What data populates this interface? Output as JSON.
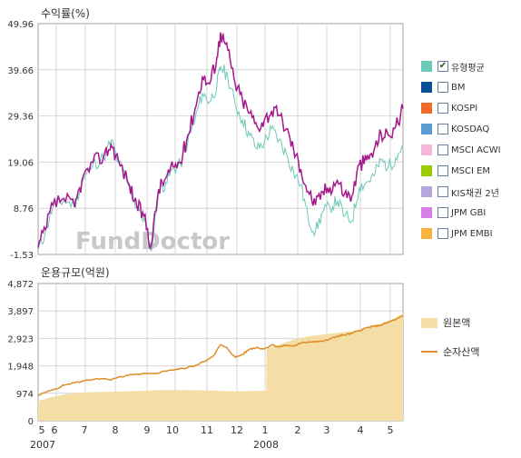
{
  "watermark": "FundDoctor",
  "colors": {
    "fund_line": "#a4188c",
    "bm_line": "#6ccab9",
    "original_fill": "#f5dea6",
    "net_asset_line": "#de8c26",
    "grid": "#d5d5d5",
    "frame": "#a0a0a0"
  },
  "legend_returns": [
    {
      "label": "유형평균",
      "color": "#6ccab9",
      "checked": true
    },
    {
      "label": "BM",
      "color": "#0b4f98",
      "checked": false
    },
    {
      "label": "KOSPI",
      "color": "#f06a2a",
      "checked": false
    },
    {
      "label": "KOSDAQ",
      "color": "#5b9bd5",
      "checked": false
    },
    {
      "label": "MSCI ACWI",
      "color": "#f4b8d9",
      "checked": false
    },
    {
      "label": "MSCI EM",
      "color": "#9acc00",
      "checked": false
    },
    {
      "label": "KIS채권 2년",
      "color": "#b7a7da",
      "checked": false
    },
    {
      "label": "JPM GBI",
      "color": "#d57fe8",
      "checked": false
    },
    {
      "label": "JPM EMBI",
      "color": "#f7b340",
      "checked": false
    }
  ],
  "legend_aum": [
    {
      "label": "원본액",
      "kind": "area",
      "color": "#f5dea6"
    },
    {
      "label": "순자산액",
      "kind": "line",
      "color": "#de8c26"
    }
  ],
  "chart_data": [
    {
      "type": "line",
      "title": "수익률(%)",
      "y_ticks": [
        "49.96",
        "39.66",
        "29.36",
        "19.06",
        "8.76",
        "-1.53"
      ],
      "ylim": [
        -1.53,
        49.96
      ],
      "grid": true,
      "series": [
        {
          "name": "유형평균",
          "x": [
            0,
            0.02,
            0.04,
            0.07,
            0.1,
            0.12,
            0.15,
            0.18,
            0.2,
            0.22,
            0.25,
            0.27,
            0.29,
            0.31,
            0.33,
            0.35,
            0.37,
            0.39,
            0.41,
            0.43,
            0.45,
            0.47,
            0.49,
            0.5,
            0.52,
            0.54,
            0.56,
            0.58,
            0.6,
            0.62,
            0.64,
            0.66,
            0.68,
            0.7,
            0.72,
            0.74,
            0.76,
            0.78,
            0.8,
            0.82,
            0.84,
            0.86,
            0.88,
            0.9,
            0.92,
            0.94,
            0.96,
            0.98,
            1.0
          ],
          "values": [
            -0.5,
            3.5,
            9.0,
            10.5,
            9.5,
            14.5,
            18.5,
            20.0,
            24.0,
            19.0,
            13.5,
            9.0,
            6.5,
            -0.8,
            12.5,
            14.5,
            17.5,
            18.5,
            23.5,
            28.5,
            34.5,
            32.5,
            36.0,
            40.5,
            38.0,
            32.0,
            28.5,
            25.0,
            22.0,
            23.5,
            26.5,
            24.0,
            21.0,
            17.0,
            14.0,
            6.5,
            3.5,
            8.0,
            9.0,
            10.5,
            7.0,
            6.0,
            13.5,
            14.5,
            16.0,
            19.5,
            18.0,
            20.0,
            23.0
          ]
        },
        {
          "name": "",
          "x": [
            0,
            0.02,
            0.04,
            0.07,
            0.1,
            0.12,
            0.15,
            0.18,
            0.2,
            0.22,
            0.25,
            0.27,
            0.29,
            0.31,
            0.33,
            0.35,
            0.37,
            0.39,
            0.41,
            0.43,
            0.45,
            0.47,
            0.49,
            0.5,
            0.52,
            0.54,
            0.56,
            0.58,
            0.6,
            0.62,
            0.64,
            0.66,
            0.68,
            0.7,
            0.72,
            0.74,
            0.76,
            0.78,
            0.8,
            0.82,
            0.84,
            0.86,
            0.88,
            0.9,
            0.92,
            0.94,
            0.96,
            0.98,
            1.0
          ],
          "values": [
            0.0,
            4.0,
            9.5,
            11.0,
            9.0,
            15.0,
            19.0,
            20.5,
            23.0,
            19.5,
            14.0,
            9.5,
            7.0,
            0.5,
            13.0,
            15.5,
            18.0,
            19.0,
            25.0,
            31.0,
            38.0,
            36.5,
            42.5,
            48.0,
            44.0,
            36.5,
            33.0,
            30.0,
            27.0,
            28.5,
            30.5,
            29.5,
            26.5,
            22.0,
            17.5,
            12.5,
            9.5,
            12.5,
            13.5,
            15.0,
            12.0,
            11.5,
            18.5,
            19.5,
            21.5,
            25.5,
            25.0,
            27.0,
            31.0
          ]
        }
      ]
    },
    {
      "type": "area",
      "title": "운용규모(억원)",
      "y_ticks": [
        "4,872",
        "3,897",
        "2,923",
        "1,948",
        "974",
        "0"
      ],
      "ylim": [
        0,
        4872
      ],
      "grid": true,
      "x_tick_labels": [
        "5",
        "6",
        "7",
        "8",
        "9",
        "10",
        "11",
        "12",
        "1",
        "2",
        "3",
        "4",
        "5"
      ],
      "year_labels": [
        "2007",
        "2008"
      ],
      "series": [
        {
          "name": "원본액",
          "x": [
            0,
            0.04,
            0.08,
            0.12,
            0.16,
            0.2,
            0.24,
            0.28,
            0.32,
            0.36,
            0.4,
            0.44,
            0.48,
            0.52,
            0.56,
            0.6,
            0.625,
            0.626,
            0.66,
            0.7,
            0.74,
            0.78,
            0.82,
            0.86,
            0.9,
            0.94,
            0.98,
            1.0
          ],
          "values": [
            700,
            850,
            950,
            1000,
            1020,
            1030,
            1040,
            1060,
            1080,
            1090,
            1090,
            1080,
            1070,
            1050,
            1050,
            1060,
            1070,
            2550,
            2700,
            2880,
            2990,
            3060,
            3120,
            3180,
            3300,
            3450,
            3650,
            3800
          ]
        },
        {
          "name": "순자산액",
          "x": [
            0,
            0.04,
            0.08,
            0.12,
            0.16,
            0.2,
            0.24,
            0.28,
            0.32,
            0.36,
            0.4,
            0.44,
            0.48,
            0.5,
            0.52,
            0.54,
            0.56,
            0.58,
            0.6,
            0.62,
            0.64,
            0.66,
            0.68,
            0.7,
            0.72,
            0.74,
            0.76,
            0.78,
            0.8,
            0.82,
            0.84,
            0.86,
            0.88,
            0.9,
            0.92,
            0.94,
            0.96,
            0.98,
            1.0
          ],
          "values": [
            900,
            1100,
            1300,
            1400,
            1500,
            1450,
            1600,
            1650,
            1680,
            1800,
            1850,
            2000,
            2300,
            2700,
            2550,
            2250,
            2350,
            2550,
            2600,
            2550,
            2700,
            2620,
            2680,
            2650,
            2750,
            2800,
            2820,
            2820,
            2900,
            3000,
            3050,
            3100,
            3200,
            3300,
            3350,
            3400,
            3500,
            3600,
            3720
          ]
        }
      ]
    }
  ]
}
